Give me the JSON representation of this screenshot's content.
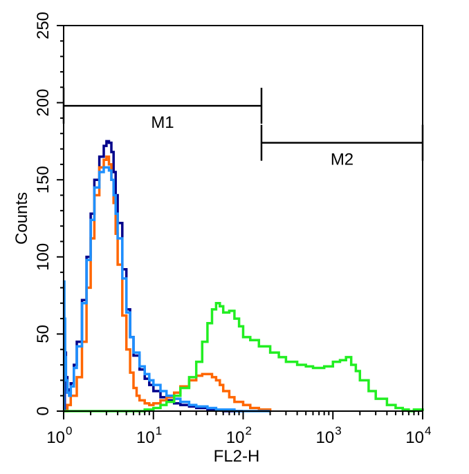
{
  "chart_data": {
    "type": "line",
    "title": "",
    "xlabel": "FL2-H",
    "ylabel": "Counts",
    "x_scale": "log",
    "xlim": [
      1,
      10000
    ],
    "ylim": [
      0,
      250
    ],
    "x_ticks": [
      {
        "value": 1,
        "base": "10",
        "exp": "0"
      },
      {
        "value": 10,
        "base": "10",
        "exp": "1"
      },
      {
        "value": 100,
        "base": "10",
        "exp": "2"
      },
      {
        "value": 1000,
        "base": "10",
        "exp": "3"
      },
      {
        "value": 10000,
        "base": "10",
        "exp": "4"
      }
    ],
    "y_ticks": [
      {
        "value": 0,
        "label": "0"
      },
      {
        "value": 50,
        "label": "50"
      },
      {
        "value": 100,
        "label": "100"
      },
      {
        "value": 150,
        "label": "150"
      },
      {
        "value": 200,
        "label": "200"
      },
      {
        "value": 250,
        "label": "250"
      }
    ],
    "grid": false,
    "legend": "none",
    "markers": [
      {
        "label": "M1",
        "x_start": 1.0,
        "x_end": 160,
        "y": 198
      },
      {
        "label": "M2",
        "x_start": 160,
        "x_end": 10000,
        "y": 174
      }
    ],
    "series": [
      {
        "color": "#00008b",
        "x": [
          1.0,
          1.03,
          1.06,
          1.1,
          1.15,
          1.2,
          1.3,
          1.4,
          1.6,
          1.8,
          2.0,
          2.2,
          2.5,
          2.8,
          3.0,
          3.2,
          3.4,
          3.6,
          3.8,
          4.0,
          4.5,
          5.0,
          5.5,
          6.0,
          7.0,
          8.0,
          9.0,
          10,
          12,
          14,
          17,
          20,
          25,
          30,
          40,
          50,
          60,
          80,
          100
        ],
        "y": [
          0,
          38,
          22,
          14,
          12,
          18,
          30,
          45,
          72,
          100,
          128,
          150,
          165,
          172,
          175,
          174,
          168,
          155,
          140,
          122,
          92,
          66,
          48,
          36,
          27,
          21,
          17,
          13,
          9,
          7,
          5,
          4,
          3,
          2,
          1,
          1,
          0,
          0,
          0
        ]
      },
      {
        "color": "#ff6600",
        "x": [
          1.0,
          1.1,
          1.2,
          1.4,
          1.6,
          1.8,
          2.0,
          2.2,
          2.5,
          2.8,
          3.0,
          3.2,
          3.4,
          3.6,
          3.8,
          4.0,
          4.5,
          5.0,
          5.5,
          6.0,
          6.5,
          7.0,
          8.0,
          9.0,
          10,
          12,
          14,
          17,
          20,
          25,
          30,
          35,
          40,
          45,
          50,
          55,
          60,
          70,
          80,
          100,
          120,
          150,
          200
        ],
        "y": [
          0,
          4,
          10,
          22,
          45,
          80,
          112,
          140,
          158,
          163,
          165,
          160,
          150,
          135,
          115,
          95,
          62,
          40,
          25,
          15,
          10,
          7,
          5,
          4,
          5,
          7,
          9,
          12,
          16,
          20,
          23,
          24,
          24,
          22,
          20,
          17,
          13,
          9,
          6,
          4,
          2,
          1,
          0
        ]
      },
      {
        "color": "#1e90ff",
        "x": [
          1.0,
          1.01,
          1.02,
          1.04,
          1.06,
          1.1,
          1.15,
          1.2,
          1.3,
          1.4,
          1.6,
          1.8,
          2.0,
          2.2,
          2.5,
          2.8,
          3.0,
          3.2,
          3.4,
          3.6,
          3.8,
          4.0,
          4.5,
          5.0,
          5.5,
          6.0,
          7.0,
          8.0,
          9.0,
          10,
          12,
          14,
          17,
          20,
          25,
          30,
          40,
          50,
          60,
          80,
          100,
          150,
          200
        ],
        "y": [
          0,
          84,
          60,
          35,
          20,
          12,
          10,
          16,
          28,
          42,
          70,
          98,
          124,
          145,
          155,
          158,
          158,
          156,
          150,
          140,
          128,
          112,
          86,
          64,
          48,
          38,
          29,
          24,
          20,
          17,
          13,
          10,
          8,
          6,
          4,
          3,
          2,
          1,
          1,
          0,
          0,
          0,
          0
        ]
      },
      {
        "color": "#22ee22",
        "x": [
          1.0,
          5,
          8,
          10,
          12,
          14,
          17,
          20,
          25,
          30,
          35,
          40,
          45,
          50,
          55,
          60,
          70,
          80,
          90,
          100,
          120,
          150,
          200,
          250,
          300,
          400,
          500,
          600,
          800,
          1000,
          1200,
          1400,
          1600,
          1800,
          2000,
          2500,
          3000,
          4000,
          5000,
          6000,
          7000,
          8000,
          10000
        ],
        "y": [
          0,
          0,
          1,
          2,
          4,
          6,
          10,
          15,
          22,
          32,
          45,
          57,
          66,
          70,
          68,
          64,
          65,
          60,
          55,
          48,
          46,
          42,
          38,
          35,
          32,
          30,
          29,
          28,
          29,
          32,
          33,
          35,
          30,
          26,
          20,
          13,
          8,
          4,
          2,
          1,
          0,
          1,
          0
        ]
      }
    ]
  }
}
